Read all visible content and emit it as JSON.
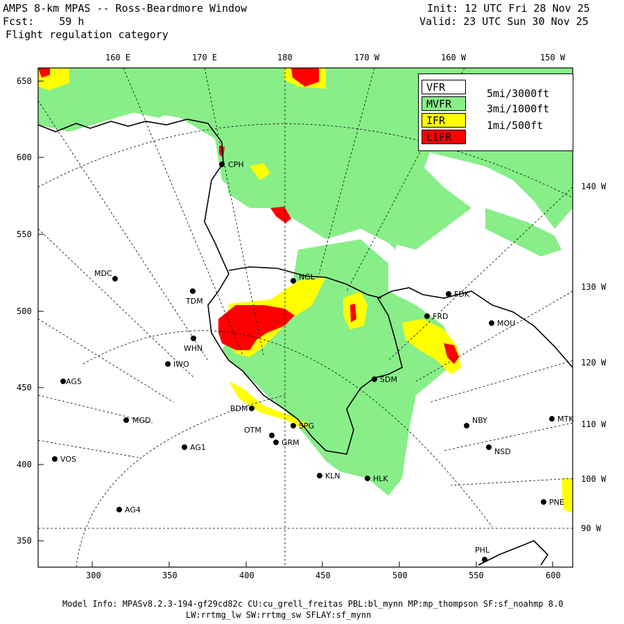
{
  "header": {
    "title": "AMPS 8-km MPAS -- Ross-Beardmore Window",
    "forecast": "Fcst:    59 h",
    "field": "Flight regulation category",
    "init": "Init: 12 UTC Fri 28 Nov 25",
    "valid": "Valid: 23 UTC Sun 30 Nov 25"
  },
  "legend": [
    {
      "cat": "VFR",
      "desc": "5mi/3000ft",
      "color": "#ffffff"
    },
    {
      "cat": "MVFR",
      "desc": "3mi/1000ft",
      "color": "#88ee88"
    },
    {
      "cat": "IFR",
      "desc": "1mi/500ft",
      "color": "#ffff00"
    },
    {
      "cat": "LIFR",
      "desc": "",
      "color": "#ff0000"
    }
  ],
  "axes": {
    "x_ticks": [
      "300",
      "350",
      "400",
      "450",
      "500",
      "550",
      "600"
    ],
    "y_ticks": [
      "650",
      "600",
      "550",
      "500",
      "450",
      "400",
      "350"
    ],
    "lon_top": [
      "160 E",
      "170 E",
      "180",
      "170 W",
      "160 W",
      "150 W"
    ],
    "lon_right": [
      "140 W",
      "130 W",
      "120 W",
      "110 W",
      "100 W",
      "90 W"
    ]
  },
  "stations": [
    {
      "id": "CPH"
    },
    {
      "id": "NGL"
    },
    {
      "id": "MDC"
    },
    {
      "id": "TDM"
    },
    {
      "id": "FDK"
    },
    {
      "id": "FRD"
    },
    {
      "id": "MOU"
    },
    {
      "id": "WHN"
    },
    {
      "id": "IWO"
    },
    {
      "id": "AG5"
    },
    {
      "id": "SDM"
    },
    {
      "id": "BDM"
    },
    {
      "id": "MGD"
    },
    {
      "id": "SPG"
    },
    {
      "id": "OTM"
    },
    {
      "id": "GRM"
    },
    {
      "id": "AG1"
    },
    {
      "id": "NBY"
    },
    {
      "id": "MTK"
    },
    {
      "id": "NSD"
    },
    {
      "id": "VOS"
    },
    {
      "id": "KLN"
    },
    {
      "id": "HLK"
    },
    {
      "id": "AG4"
    },
    {
      "id": "PNE"
    },
    {
      "id": "PHL"
    }
  ],
  "footer": {
    "line1": "Model Info: MPASv8.2.3-194-gf29cd82c CU:cu_grell_freitas PBL:bl_mynn MP:mp_thompson SF:sf_noahmp 8.0",
    "line2": "LW:rrtmg_lw SW:rrtmg_sw SFLAY:sf_mynn"
  }
}
